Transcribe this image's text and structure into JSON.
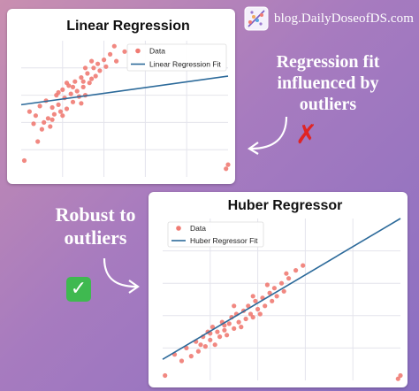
{
  "brand": {
    "text": "blog.DailyDoseofDS.com",
    "icon": "dailydoseofds-logo-icon"
  },
  "callouts": {
    "top": [
      "Regression fit",
      "influenced by",
      "outliers"
    ],
    "bottom": [
      "Robust to",
      "outliers"
    ]
  },
  "marks": {
    "bad": "✗",
    "good": "✓"
  },
  "colors": {
    "data": "#f07b73",
    "fit": "#2c6a9a",
    "grid": "#e4e4ec"
  },
  "chart_data": [
    {
      "type": "scatter",
      "title": "Linear Regression",
      "xlabel": "",
      "ylabel": "",
      "xlim": [
        0,
        10
      ],
      "ylim": [
        0,
        10
      ],
      "grid": true,
      "legend": "top-right",
      "legend_entries": [
        "Data",
        "Linear Regression Fit"
      ],
      "series": [
        {
          "name": "Data",
          "kind": "points",
          "points": [
            [
              0.15,
              1.2
            ],
            [
              0.4,
              4.8
            ],
            [
              0.6,
              3.9
            ],
            [
              0.7,
              4.5
            ],
            [
              0.9,
              5.2
            ],
            [
              1.0,
              3.5
            ],
            [
              1.1,
              4.0
            ],
            [
              1.2,
              5.6
            ],
            [
              1.3,
              4.3
            ],
            [
              1.4,
              3.7
            ],
            [
              1.5,
              5.1
            ],
            [
              1.6,
              4.6
            ],
            [
              1.7,
              6.0
            ],
            [
              1.8,
              5.3
            ],
            [
              1.9,
              4.8
            ],
            [
              2.0,
              6.4
            ],
            [
              2.1,
              5.8
            ],
            [
              2.2,
              5.0
            ],
            [
              2.3,
              6.7
            ],
            [
              2.4,
              6.1
            ],
            [
              2.5,
              5.5
            ],
            [
              2.6,
              7.0
            ],
            [
              2.7,
              6.3
            ],
            [
              2.8,
              5.9
            ],
            [
              2.9,
              7.3
            ],
            [
              3.0,
              6.6
            ],
            [
              3.1,
              6.0
            ],
            [
              3.2,
              7.6
            ],
            [
              3.3,
              6.9
            ],
            [
              3.4,
              7.2
            ],
            [
              3.5,
              8.0
            ],
            [
              3.6,
              7.4
            ],
            [
              3.7,
              8.3
            ],
            [
              3.8,
              7.8
            ],
            [
              4.0,
              8.6
            ],
            [
              4.1,
              8.1
            ],
            [
              4.3,
              9.0
            ],
            [
              4.6,
              8.5
            ],
            [
              1.8,
              6.2
            ],
            [
              2.5,
              6.6
            ],
            [
              3.0,
              7.0
            ],
            [
              2.0,
              4.5
            ],
            [
              2.9,
              5.4
            ],
            [
              3.4,
              8.5
            ],
            [
              1.5,
              4.2
            ],
            [
              2.2,
              6.9
            ],
            [
              3.1,
              8.0
            ],
            [
              4.5,
              9.6
            ],
            [
              5.0,
              9.2
            ],
            [
              0.8,
              2.6
            ],
            [
              10.0,
              0.9
            ],
            [
              9.9,
              0.6
            ]
          ]
        },
        {
          "name": "Linear Regression Fit",
          "kind": "line",
          "points": [
            [
              0.0,
              5.3
            ],
            [
              10.0,
              7.4
            ]
          ]
        }
      ]
    },
    {
      "type": "scatter",
      "title": "Huber Regressor",
      "xlabel": "",
      "ylabel": "",
      "xlim": [
        0,
        10
      ],
      "ylim": [
        0,
        10
      ],
      "grid": true,
      "legend": "top-left",
      "legend_entries": [
        "Data",
        "Huber Regressor Fit"
      ],
      "series": [
        {
          "name": "Data",
          "kind": "points",
          "points": [
            [
              0.1,
              0.3
            ],
            [
              0.5,
              1.6
            ],
            [
              0.8,
              1.2
            ],
            [
              1.0,
              2.0
            ],
            [
              1.2,
              1.5
            ],
            [
              1.4,
              2.4
            ],
            [
              1.5,
              1.8
            ],
            [
              1.7,
              2.7
            ],
            [
              1.8,
              2.1
            ],
            [
              1.9,
              3.0
            ],
            [
              2.0,
              2.5
            ],
            [
              2.1,
              3.3
            ],
            [
              2.2,
              2.2
            ],
            [
              2.3,
              3.0
            ],
            [
              2.4,
              2.7
            ],
            [
              2.5,
              3.6
            ],
            [
              2.6,
              3.1
            ],
            [
              2.7,
              2.8
            ],
            [
              2.8,
              3.5
            ],
            [
              2.9,
              3.9
            ],
            [
              3.0,
              3.2
            ],
            [
              3.1,
              4.1
            ],
            [
              3.2,
              3.6
            ],
            [
              3.3,
              3.3
            ],
            [
              3.4,
              4.3
            ],
            [
              3.5,
              3.8
            ],
            [
              3.6,
              4.6
            ],
            [
              3.7,
              4.1
            ],
            [
              3.8,
              3.9
            ],
            [
              3.9,
              4.9
            ],
            [
              4.0,
              4.4
            ],
            [
              4.1,
              4.1
            ],
            [
              4.2,
              5.1
            ],
            [
              4.3,
              4.6
            ],
            [
              4.5,
              5.4
            ],
            [
              4.6,
              4.9
            ],
            [
              4.7,
              5.7
            ],
            [
              4.8,
              5.2
            ],
            [
              5.0,
              6.0
            ],
            [
              5.1,
              5.5
            ],
            [
              5.3,
              6.3
            ],
            [
              5.6,
              6.8
            ],
            [
              5.9,
              7.1
            ],
            [
              2.0,
              2.9
            ],
            [
              3.0,
              4.6
            ],
            [
              3.8,
              5.2
            ],
            [
              4.4,
              5.9
            ],
            [
              5.2,
              6.6
            ],
            [
              1.6,
              2.2
            ],
            [
              2.6,
              3.4
            ],
            [
              9.9,
              0.1
            ],
            [
              10.0,
              0.3
            ]
          ]
        },
        {
          "name": "Huber Regressor Fit",
          "kind": "line",
          "points": [
            [
              0.0,
              1.3
            ],
            [
              10.0,
              10.0
            ]
          ]
        }
      ]
    }
  ]
}
